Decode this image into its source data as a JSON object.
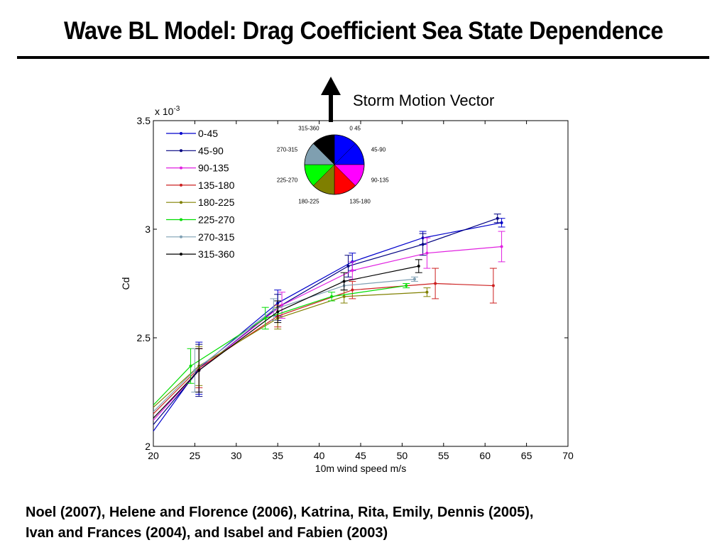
{
  "title": "Wave BL Model: Drag Coefficient Sea State Dependence",
  "storm_label": "Storm Motion Vector",
  "caption": {
    "line1": "Noel (2007), Helene and Florence (2006), Katrina, Rita, Emily, Dennis (2005),",
    "line2": "Ivan and Frances (2004), and Isabel and Fabien (2003)"
  },
  "pie": {
    "slices": [
      {
        "label": "0 45",
        "color": "#0000ff"
      },
      {
        "label": "45-90",
        "color": "#0000ff"
      },
      {
        "label": "90-135",
        "color": "#ff00ff"
      },
      {
        "label": "135-180",
        "color": "#ff0000"
      },
      {
        "label": "180-225",
        "color": "#7f7f00"
      },
      {
        "label": "225-270",
        "color": "#00ff00"
      },
      {
        "label": "270-315",
        "color": "#7f9fb0"
      },
      {
        "label": "315-360",
        "color": "#000000"
      }
    ]
  },
  "chart_data": {
    "type": "line",
    "xlabel": "10m wind speed m/s",
    "ylabel": "Cd",
    "y_multiplier": "x 10-3",
    "xlim": [
      20,
      70
    ],
    "ylim": [
      2,
      3.5
    ],
    "xticks": [
      20,
      25,
      30,
      35,
      40,
      45,
      50,
      55,
      60,
      65,
      70
    ],
    "yticks": [
      2,
      2.5,
      3,
      3.5
    ],
    "legend_position": "top-left",
    "series": [
      {
        "name": "0-45",
        "color": "#0000cc",
        "x": [
          20,
          25.5,
          35,
          44,
          52.5,
          62
        ],
        "y": [
          2.07,
          2.36,
          2.66,
          2.85,
          2.96,
          3.03
        ],
        "err": [
          0,
          0.12,
          0.06,
          0.04,
          0.03,
          0.02
        ]
      },
      {
        "name": "45-90",
        "color": "#000080",
        "x": [
          20,
          25.5,
          35,
          43.5,
          52.5,
          61.5
        ],
        "y": [
          2.1,
          2.35,
          2.64,
          2.83,
          2.93,
          3.05
        ],
        "err": [
          0,
          0.12,
          0.06,
          0.05,
          0.05,
          0.02
        ]
      },
      {
        "name": "90-135",
        "color": "#e020e0",
        "x": [
          20,
          25.5,
          35.5,
          44,
          53,
          62
        ],
        "y": [
          2.12,
          2.35,
          2.65,
          2.81,
          2.89,
          2.92
        ],
        "err": [
          0,
          0.1,
          0.06,
          0.04,
          0.07,
          0.07
        ]
      },
      {
        "name": "135-180",
        "color": "#cc2020",
        "x": [
          20,
          25.5,
          35,
          44,
          54,
          61
        ],
        "y": [
          2.15,
          2.36,
          2.6,
          2.72,
          2.75,
          2.74
        ],
        "err": [
          0,
          0.09,
          0.05,
          0.04,
          0.07,
          0.08
        ]
      },
      {
        "name": "180-225",
        "color": "#808000",
        "x": [
          20,
          25.5,
          35,
          43,
          53
        ],
        "y": [
          2.18,
          2.37,
          2.59,
          2.69,
          2.71
        ],
        "err": [
          0,
          0.09,
          0.05,
          0.03,
          0.02
        ]
      },
      {
        "name": "225-270",
        "color": "#00dd00",
        "x": [
          20,
          24.5,
          33.5,
          41.5,
          50.5
        ],
        "y": [
          2.19,
          2.37,
          2.59,
          2.69,
          2.74
        ],
        "err": [
          0,
          0.08,
          0.05,
          0.02,
          0.01
        ]
      },
      {
        "name": "270-315",
        "color": "#7fa0b4",
        "x": [
          20,
          25,
          34.5,
          43,
          51.5
        ],
        "y": [
          2.16,
          2.35,
          2.63,
          2.74,
          2.77
        ],
        "err": [
          0,
          0.1,
          0.05,
          0.02,
          0.01
        ]
      },
      {
        "name": "315-360",
        "color": "#000000",
        "x": [
          20,
          25.5,
          35,
          43,
          52
        ],
        "y": [
          2.13,
          2.35,
          2.62,
          2.76,
          2.83
        ],
        "err": [
          0,
          0.1,
          0.05,
          0.04,
          0.03
        ]
      }
    ]
  }
}
